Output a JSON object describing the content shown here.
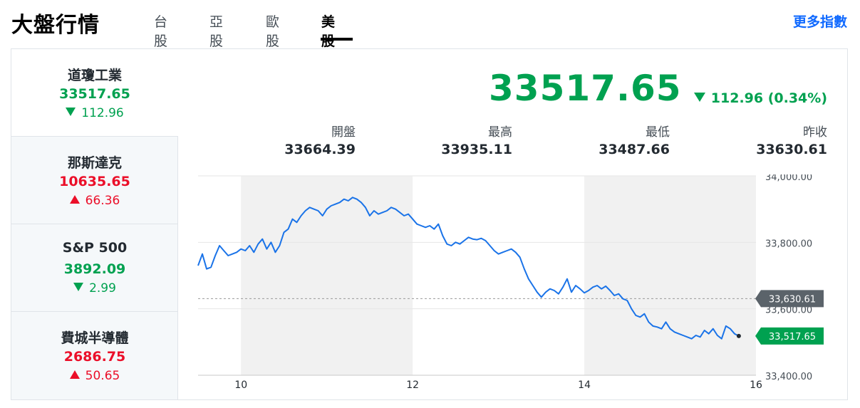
{
  "header": {
    "title": "大盤行情",
    "tabs": [
      {
        "label": "台股",
        "active": false
      },
      {
        "label": "亞股",
        "active": false
      },
      {
        "label": "歐股",
        "active": false
      },
      {
        "label": "美股",
        "active": true
      }
    ],
    "more_link": "更多指數"
  },
  "sidebar": {
    "items": [
      {
        "name": "道瓊工業",
        "price": "33517.65",
        "change": "112.96",
        "direction": "down",
        "active": true
      },
      {
        "name": "那斯達克",
        "price": "10635.65",
        "change": "66.36",
        "direction": "up",
        "active": false
      },
      {
        "name": "S&P 500",
        "price": "3892.09",
        "change": "2.99",
        "direction": "down",
        "active": false
      },
      {
        "name": "費城半導體",
        "price": "2686.75",
        "change": "50.65",
        "direction": "up",
        "active": false
      }
    ]
  },
  "quote": {
    "price": "33517.65",
    "change": "112.96 (0.34%)",
    "direction": "down",
    "stats": [
      {
        "label": "開盤",
        "value": "33664.39"
      },
      {
        "label": "最高",
        "value": "33935.11"
      },
      {
        "label": "最低",
        "value": "33487.66"
      },
      {
        "label": "昨收",
        "value": "33630.61"
      }
    ]
  },
  "colors": {
    "down": "#00a150",
    "up": "#eb0f29",
    "line": "#1a73e8",
    "link": "#0f69ff",
    "prev_close_badge": "#5b636a",
    "last_badge": "#00a150"
  },
  "chart_data": {
    "type": "line",
    "x_ticks": [
      "10",
      "12",
      "14",
      "16"
    ],
    "y_ticks": [
      "34,000.00",
      "33,800.00",
      "33,600.00",
      "33,400.00"
    ],
    "ylim": [
      33400,
      34000
    ],
    "xlim": [
      9.5,
      16
    ],
    "prev_close": 33630.61,
    "prev_close_label": "33,630.61",
    "last_label": "33,517.65",
    "grid": true,
    "series": [
      {
        "points": [
          [
            9.5,
            33730
          ],
          [
            9.55,
            33765
          ],
          [
            9.6,
            33720
          ],
          [
            9.65,
            33725
          ],
          [
            9.7,
            33760
          ],
          [
            9.75,
            33790
          ],
          [
            9.8,
            33775
          ],
          [
            9.85,
            33760
          ],
          [
            9.9,
            33765
          ],
          [
            9.95,
            33770
          ],
          [
            10.0,
            33780
          ],
          [
            10.05,
            33775
          ],
          [
            10.1,
            33790
          ],
          [
            10.15,
            33770
          ],
          [
            10.2,
            33795
          ],
          [
            10.25,
            33810
          ],
          [
            10.3,
            33780
          ],
          [
            10.35,
            33800
          ],
          [
            10.4,
            33770
          ],
          [
            10.45,
            33790
          ],
          [
            10.5,
            33830
          ],
          [
            10.55,
            33840
          ],
          [
            10.6,
            33870
          ],
          [
            10.65,
            33860
          ],
          [
            10.7,
            33880
          ],
          [
            10.75,
            33895
          ],
          [
            10.8,
            33905
          ],
          [
            10.85,
            33900
          ],
          [
            10.9,
            33895
          ],
          [
            10.95,
            33880
          ],
          [
            11.0,
            33900
          ],
          [
            11.05,
            33910
          ],
          [
            11.1,
            33915
          ],
          [
            11.15,
            33920
          ],
          [
            11.2,
            33930
          ],
          [
            11.25,
            33925
          ],
          [
            11.3,
            33935
          ],
          [
            11.35,
            33930
          ],
          [
            11.4,
            33920
          ],
          [
            11.45,
            33905
          ],
          [
            11.5,
            33880
          ],
          [
            11.55,
            33895
          ],
          [
            11.6,
            33885
          ],
          [
            11.65,
            33890
          ],
          [
            11.7,
            33895
          ],
          [
            11.75,
            33905
          ],
          [
            11.8,
            33900
          ],
          [
            11.85,
            33890
          ],
          [
            11.9,
            33880
          ],
          [
            11.95,
            33885
          ],
          [
            12.0,
            33870
          ],
          [
            12.05,
            33855
          ],
          [
            12.1,
            33850
          ],
          [
            12.15,
            33845
          ],
          [
            12.2,
            33850
          ],
          [
            12.25,
            33840
          ],
          [
            12.3,
            33855
          ],
          [
            12.35,
            33820
          ],
          [
            12.4,
            33795
          ],
          [
            12.45,
            33790
          ],
          [
            12.5,
            33800
          ],
          [
            12.55,
            33795
          ],
          [
            12.6,
            33805
          ],
          [
            12.65,
            33815
          ],
          [
            12.7,
            33810
          ],
          [
            12.75,
            33808
          ],
          [
            12.8,
            33812
          ],
          [
            12.85,
            33805
          ],
          [
            12.9,
            33790
          ],
          [
            12.95,
            33775
          ],
          [
            13.0,
            33765
          ],
          [
            13.05,
            33770
          ],
          [
            13.1,
            33775
          ],
          [
            13.15,
            33780
          ],
          [
            13.2,
            33770
          ],
          [
            13.25,
            33755
          ],
          [
            13.3,
            33720
          ],
          [
            13.35,
            33690
          ],
          [
            13.4,
            33670
          ],
          [
            13.45,
            33650
          ],
          [
            13.5,
            33635
          ],
          [
            13.55,
            33650
          ],
          [
            13.6,
            33660
          ],
          [
            13.65,
            33655
          ],
          [
            13.7,
            33645
          ],
          [
            13.75,
            33665
          ],
          [
            13.8,
            33690
          ],
          [
            13.85,
            33650
          ],
          [
            13.9,
            33670
          ],
          [
            13.95,
            33660
          ],
          [
            14.0,
            33648
          ],
          [
            14.05,
            33655
          ],
          [
            14.1,
            33665
          ],
          [
            14.15,
            33670
          ],
          [
            14.2,
            33660
          ],
          [
            14.25,
            33668
          ],
          [
            14.3,
            33655
          ],
          [
            14.35,
            33640
          ],
          [
            14.4,
            33645
          ],
          [
            14.45,
            33630
          ],
          [
            14.5,
            33625
          ],
          [
            14.55,
            33600
          ],
          [
            14.6,
            33580
          ],
          [
            14.65,
            33575
          ],
          [
            14.7,
            33585
          ],
          [
            14.75,
            33560
          ],
          [
            14.8,
            33548
          ],
          [
            14.85,
            33545
          ],
          [
            14.9,
            33540
          ],
          [
            14.95,
            33560
          ],
          [
            15.0,
            33540
          ],
          [
            15.05,
            33530
          ],
          [
            15.1,
            33525
          ],
          [
            15.15,
            33520
          ],
          [
            15.2,
            33515
          ],
          [
            15.25,
            33510
          ],
          [
            15.3,
            33520
          ],
          [
            15.35,
            33515
          ],
          [
            15.4,
            33535
          ],
          [
            15.45,
            33525
          ],
          [
            15.5,
            33540
          ],
          [
            15.55,
            33520
          ],
          [
            15.6,
            33510
          ],
          [
            15.65,
            33548
          ],
          [
            15.7,
            33540
          ],
          [
            15.75,
            33525
          ],
          [
            15.8,
            33518
          ]
        ]
      }
    ]
  }
}
